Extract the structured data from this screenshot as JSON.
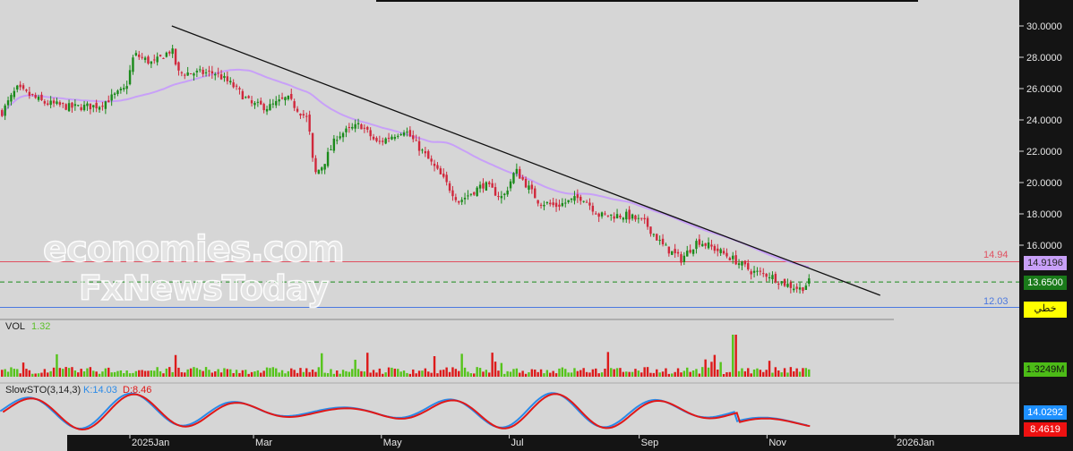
{
  "chart_data": {
    "type": "candlestick",
    "price_axis": {
      "ticks": [
        30,
        28,
        26,
        24,
        22,
        20,
        18,
        16
      ],
      "tick_labels": [
        "30.0000",
        "28.0000",
        "26.0000",
        "24.0000",
        "22.0000",
        "20.0000",
        "18.0000",
        "16.0000"
      ],
      "range": [
        11.5,
        31.5
      ],
      "position": "right"
    },
    "time_axis": {
      "tick_labels": [
        {
          "label": "2025Jan",
          "date": "2025-01-01"
        },
        {
          "label": "Mar",
          "date": "2025-03-01"
        },
        {
          "label": "May",
          "date": "2025-05-01"
        },
        {
          "label": "Jul",
          "date": "2025-07-01"
        },
        {
          "label": "Sep",
          "date": "2025-09-01"
        },
        {
          "label": "Nov",
          "date": "2025-11-01"
        },
        {
          "label": "2026Jan",
          "date": "2026-01-01"
        }
      ]
    },
    "closes": [
      [
        "2024-11-01",
        24.5
      ],
      [
        "2024-11-08",
        26.0
      ],
      [
        "2024-11-21",
        25.1
      ],
      [
        "2024-12-04",
        24.8
      ],
      [
        "2024-12-17",
        24.9
      ],
      [
        "2024-12-30",
        26.0
      ],
      [
        "2025-01-03",
        28.2
      ],
      [
        "2025-01-12",
        27.6
      ],
      [
        "2025-01-21",
        28.5
      ],
      [
        "2025-01-24",
        27.0
      ],
      [
        "2025-02-11",
        27.0
      ],
      [
        "2025-02-19",
        26.2
      ],
      [
        "2025-02-28",
        25.0
      ],
      [
        "2025-03-08",
        24.8
      ],
      [
        "2025-03-17",
        25.4
      ],
      [
        "2025-03-27",
        24.0
      ],
      [
        "2025-03-30",
        20.5
      ],
      [
        "2025-04-03",
        21.1
      ],
      [
        "2025-04-10",
        23.0
      ],
      [
        "2025-04-21",
        23.7
      ],
      [
        "2025-04-29",
        22.5
      ],
      [
        "2025-05-12",
        23.4
      ],
      [
        "2025-05-21",
        21.9
      ],
      [
        "2025-05-29",
        20.5
      ],
      [
        "2025-06-07",
        18.8
      ],
      [
        "2025-06-19",
        19.9
      ],
      [
        "2025-06-28",
        19.0
      ],
      [
        "2025-07-04",
        20.8
      ],
      [
        "2025-07-15",
        18.8
      ],
      [
        "2025-07-23",
        18.5
      ],
      [
        "2025-08-05",
        19.1
      ],
      [
        "2025-08-13",
        17.9
      ],
      [
        "2025-08-26",
        17.9
      ],
      [
        "2025-09-04",
        17.4
      ],
      [
        "2025-09-12",
        16.0
      ],
      [
        "2025-09-21",
        15.1
      ],
      [
        "2025-09-29",
        16.3
      ],
      [
        "2025-10-08",
        15.7
      ],
      [
        "2025-10-16",
        15.1
      ],
      [
        "2025-10-25",
        14.3
      ],
      [
        "2025-11-02",
        14.1
      ],
      [
        "2025-11-10",
        13.5
      ],
      [
        "2025-11-17",
        13.2
      ],
      [
        "2025-11-21",
        13.65
      ]
    ],
    "moving_average": {
      "last": "14.9196",
      "color": "#c8a0f8"
    },
    "trendline": {
      "from": [
        "2025-01-21",
        30.0
      ],
      "to": [
        "2025-12-25",
        12.8
      ],
      "color": "#111111"
    },
    "horizontal_lines": [
      {
        "value": 14.94,
        "label": "14.94",
        "color": "#e05060"
      },
      {
        "value": 12.03,
        "label": "12.03",
        "color": "#4a78e0"
      },
      {
        "value": 13.65,
        "color": "#1a8a1a",
        "style": "dashed"
      }
    ],
    "last_price": "13.6500",
    "line_tag": "خطي",
    "volume": {
      "title": "VOL",
      "value": "1.32",
      "last": "1.3249M"
    },
    "stochastic": {
      "title": "SlowSTO(3,14,3)",
      "k_label": "K:14.03",
      "d_label": "D:8.46",
      "k_last": "14.0292",
      "d_last": "8.4619",
      "k_color": "#2a8ae8",
      "d_color": "#e01818"
    },
    "up_color": "#1a8a1a",
    "down_color": "#d0283c"
  },
  "watermark": {
    "line1": "economies.com",
    "line2": "FxNewsToday"
  }
}
